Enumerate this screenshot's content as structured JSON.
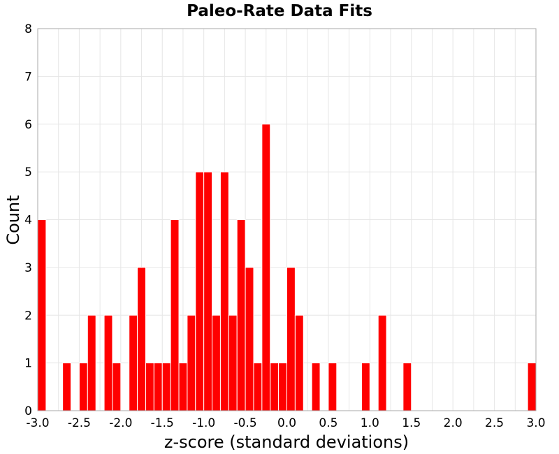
{
  "chart_data": {
    "type": "bar",
    "title": "Paleo-Rate Data Fits",
    "xlabel": "z-score (standard deviations)",
    "ylabel": "Count",
    "xlim": [
      -3.0,
      3.0
    ],
    "ylim": [
      0,
      8
    ],
    "x_ticks": [
      "-3.0",
      "-2.5",
      "-2.0",
      "-1.5",
      "-1.0",
      "-0.5",
      "0.0",
      "0.5",
      "1.0",
      "1.5",
      "2.0",
      "2.5",
      "3.0"
    ],
    "y_ticks": [
      "0",
      "1",
      "2",
      "3",
      "4",
      "5",
      "6",
      "7",
      "8"
    ],
    "bin_width": 0.1,
    "bins": [
      {
        "x": -2.95,
        "count": 4
      },
      {
        "x": -2.65,
        "count": 1
      },
      {
        "x": -2.45,
        "count": 1
      },
      {
        "x": -2.35,
        "count": 2
      },
      {
        "x": -2.15,
        "count": 2
      },
      {
        "x": -2.05,
        "count": 1
      },
      {
        "x": -1.85,
        "count": 2
      },
      {
        "x": -1.75,
        "count": 3
      },
      {
        "x": -1.65,
        "count": 1
      },
      {
        "x": -1.55,
        "count": 1
      },
      {
        "x": -1.45,
        "count": 1
      },
      {
        "x": -1.35,
        "count": 4
      },
      {
        "x": -1.25,
        "count": 1
      },
      {
        "x": -1.15,
        "count": 2
      },
      {
        "x": -1.05,
        "count": 5
      },
      {
        "x": -0.95,
        "count": 5
      },
      {
        "x": -0.85,
        "count": 2
      },
      {
        "x": -0.75,
        "count": 5
      },
      {
        "x": -0.65,
        "count": 2
      },
      {
        "x": -0.55,
        "count": 4
      },
      {
        "x": -0.45,
        "count": 3
      },
      {
        "x": -0.35,
        "count": 1
      },
      {
        "x": -0.25,
        "count": 6
      },
      {
        "x": -0.15,
        "count": 1
      },
      {
        "x": -0.05,
        "count": 1
      },
      {
        "x": 0.05,
        "count": 3
      },
      {
        "x": 0.15,
        "count": 2
      },
      {
        "x": 0.35,
        "count": 1
      },
      {
        "x": 0.55,
        "count": 1
      },
      {
        "x": 0.95,
        "count": 1
      },
      {
        "x": 1.15,
        "count": 2
      },
      {
        "x": 1.45,
        "count": 1
      },
      {
        "x": 2.95,
        "count": 1
      }
    ],
    "bar_color": "#ff0000",
    "bar_edge_color": "#ffffff",
    "grid": true,
    "legend": "none"
  }
}
